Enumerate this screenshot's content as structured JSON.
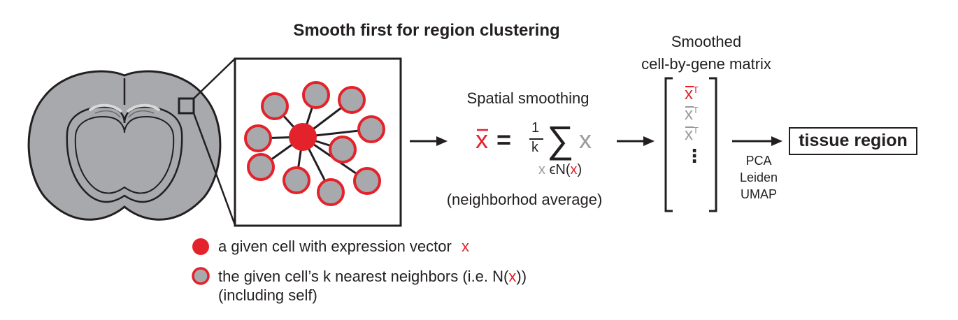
{
  "title": "Smooth first for region clustering",
  "matrix": {
    "title_line1": "Smoothed",
    "title_line2": "cell-by-gene matrix",
    "row_symbol": "x",
    "row_superscript": "T",
    "ellipsis": "⋮"
  },
  "smoothing": {
    "label": "Spatial smoothing",
    "lhs": "x",
    "equals": "=",
    "frac_num": "1",
    "frac_den": "k",
    "sum_symbol": "∑",
    "summand": "x",
    "subscript_var": "x",
    "subscript_in": "ϵ",
    "subscript_set": "N(",
    "subscript_set_var": "x",
    "subscript_close": ")",
    "caption": "(neighborhod average)"
  },
  "methods": [
    "PCA",
    "Leiden",
    "UMAP"
  ],
  "output": "tissue region",
  "legend": {
    "item1_text": "a given cell with expression vector",
    "item1_var": "x",
    "item2_text": "the given cell’s k nearest neighbors (i.e. ",
    "item2_set": "N(",
    "item2_var": "x",
    "item2_close": "))",
    "item2_line2": "(including self)"
  },
  "colors": {
    "accent_red": "#e3222b",
    "neighbor_gray": "#a7a9ac",
    "brain_gray": "#a7a9ac",
    "outline": "#231f20",
    "faded_gray": "#9a9a9a"
  }
}
